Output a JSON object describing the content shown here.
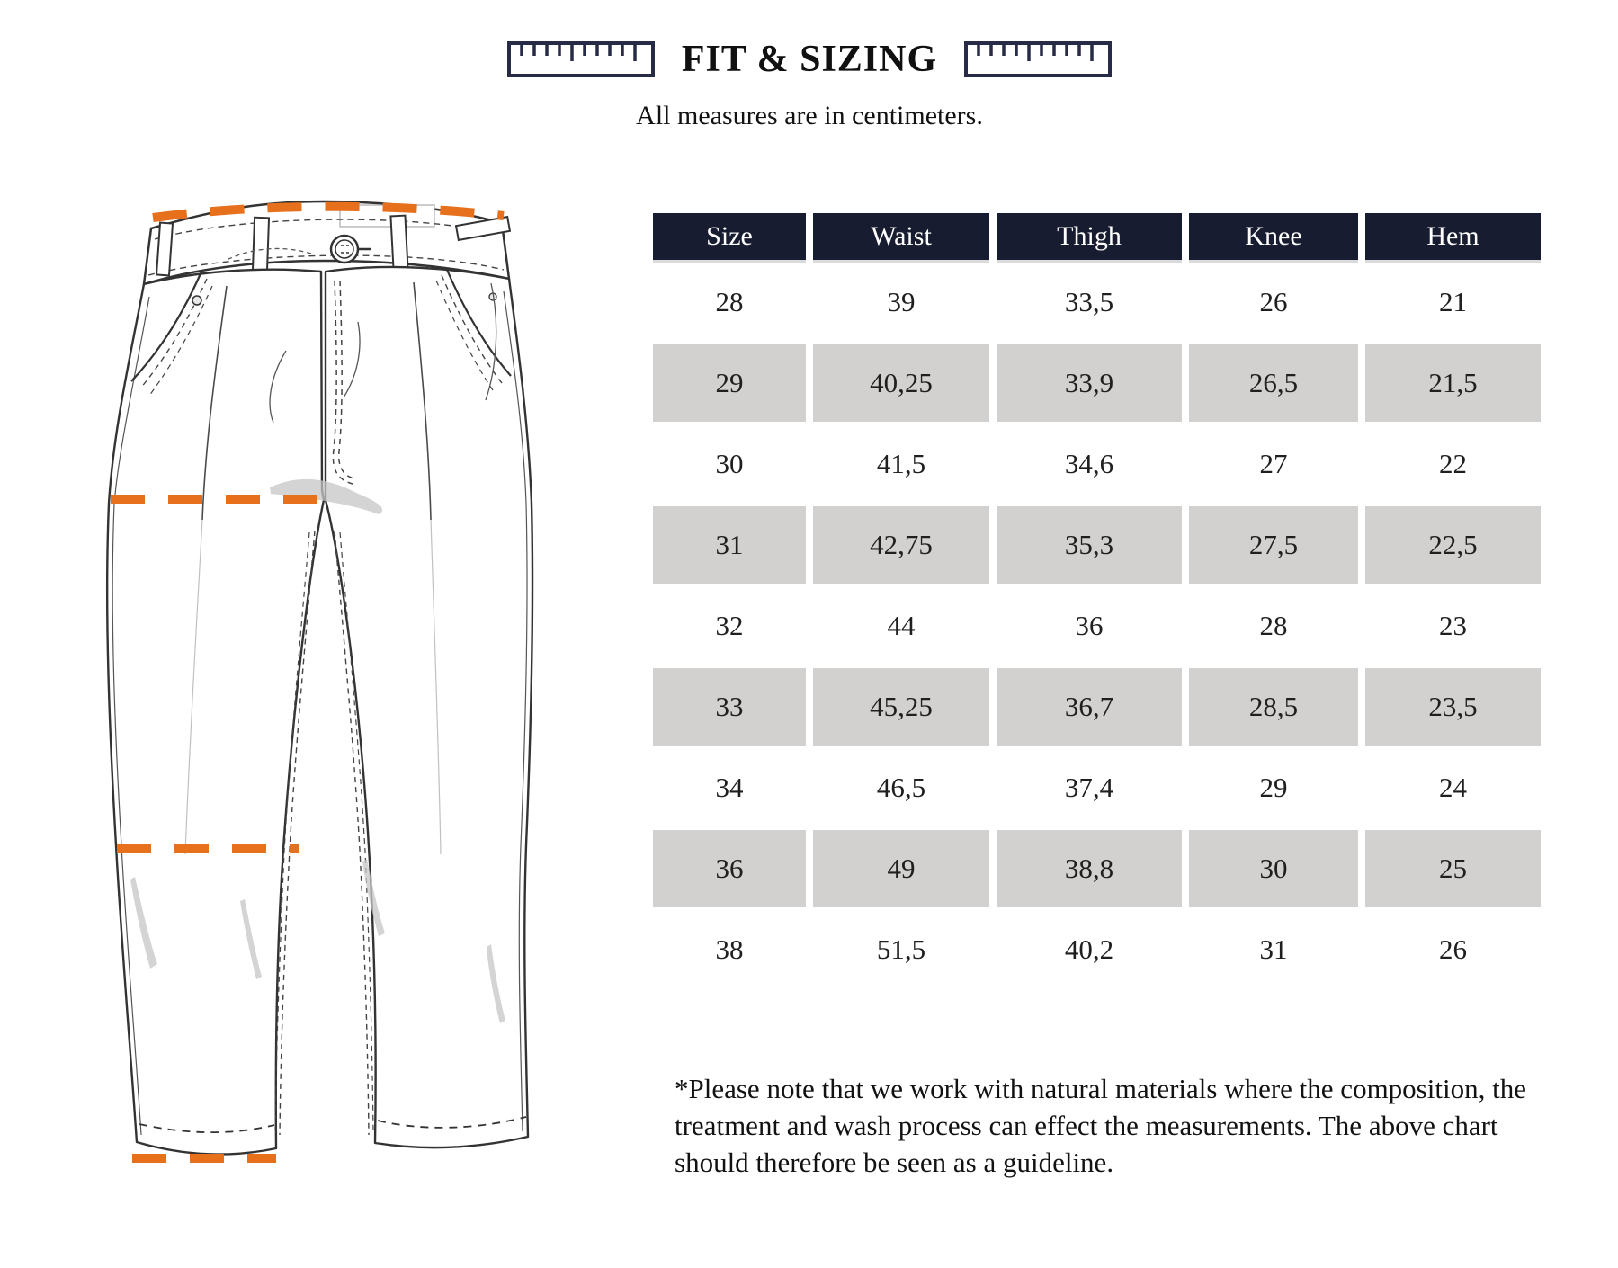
{
  "header": {
    "title": "FIT & SIZING",
    "subtitle": "All measures are in centimeters."
  },
  "table": {
    "columns": [
      "Size",
      "Waist",
      "Thigh",
      "Knee",
      "Hem"
    ],
    "rows": [
      [
        "28",
        "39",
        "33,5",
        "26",
        "21"
      ],
      [
        "29",
        "40,25",
        "33,9",
        "26,5",
        "21,5"
      ],
      [
        "30",
        "41,5",
        "34,6",
        "27",
        "22"
      ],
      [
        "31",
        "42,75",
        "35,3",
        "27,5",
        "22,5"
      ],
      [
        "32",
        "44",
        "36",
        "28",
        "23"
      ],
      [
        "33",
        "45,25",
        "36,7",
        "28,5",
        "23,5"
      ],
      [
        "34",
        "46,5",
        "37,4",
        "29",
        "24"
      ],
      [
        "36",
        "49",
        "38,8",
        "30",
        "25"
      ],
      [
        "38",
        "51,5",
        "40,2",
        "31",
        "26"
      ]
    ]
  },
  "footnote": {
    "lines": [
      "*Please note that we work with natural materials where the composition, the",
      "treatment and wash process can effect the measurements. The above chart",
      "should therefore be seen as a guideline."
    ]
  },
  "diagram": {
    "subject": "trousers-flat-sketch",
    "measurement_lines": [
      "waist",
      "thigh",
      "knee",
      "hem"
    ]
  },
  "colors": {
    "header_navy": "#181C30",
    "row_gray": "#D2D1CF",
    "accent_orange": "#E7701D",
    "ruler_navy": "#272B45",
    "text": "#1B1B1B"
  }
}
